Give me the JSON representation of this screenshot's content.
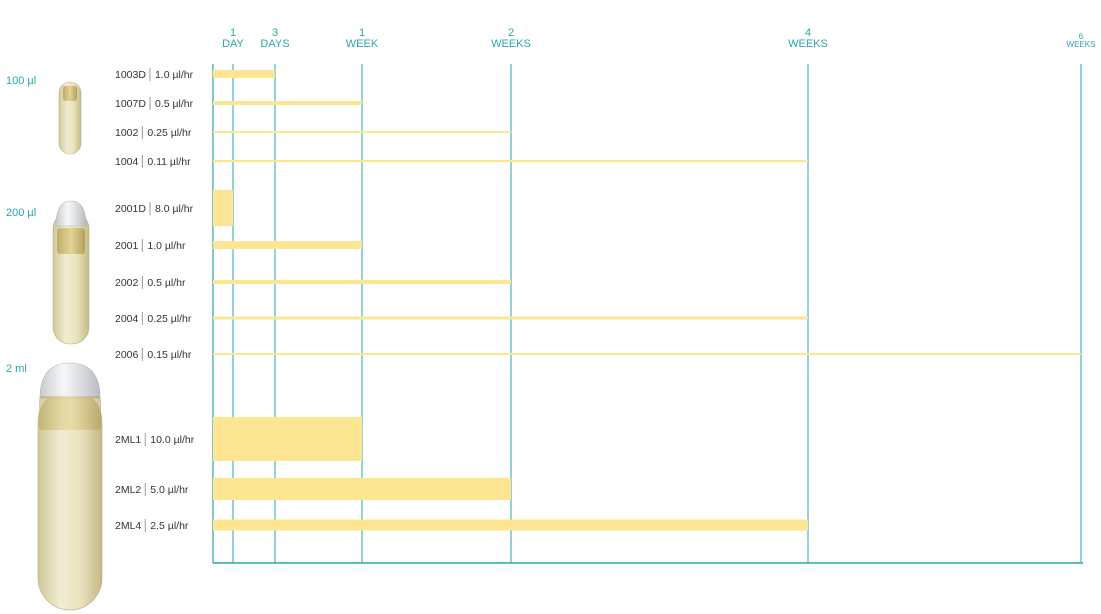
{
  "chart_data": {
    "type": "bar",
    "orientation": "horizontal",
    "x_unit": "days",
    "xlim": [
      0,
      42
    ],
    "ticks": [
      {
        "value": 1,
        "lines": [
          "1",
          "DAY"
        ]
      },
      {
        "value": 3,
        "lines": [
          "3",
          "DAYS"
        ]
      },
      {
        "value": 7,
        "lines": [
          "1",
          "WEEK"
        ]
      },
      {
        "value": 14,
        "lines": [
          "2",
          "WEEKS"
        ]
      },
      {
        "value": 28,
        "lines": [
          "4",
          "WEEKS"
        ]
      },
      {
        "value": 42,
        "lines": [
          "6",
          "WEEKS"
        ],
        "small": true
      }
    ],
    "groups": [
      {
        "size_label": "100 µl",
        "pump": "small",
        "items": [
          {
            "model": "1003D",
            "rate": "1.0 µl/hr",
            "duration_days": 3,
            "thickness": 8
          },
          {
            "model": "1007D",
            "rate": "0.5 µl/hr",
            "duration_days": 7,
            "thickness": 4
          },
          {
            "model": "1002",
            "rate": "0.25 µl/hr",
            "duration_days": 14,
            "thickness": 2
          },
          {
            "model": "1004",
            "rate": "0.11 µl/hr",
            "duration_days": 28,
            "thickness": 2
          }
        ]
      },
      {
        "size_label": "200 µl",
        "pump": "medium",
        "items": [
          {
            "model": "2001D",
            "rate": "8.0 µl/hr",
            "duration_days": 1,
            "thickness": 36
          },
          {
            "model": "2001",
            "rate": "1.0 µl/hr",
            "duration_days": 7,
            "thickness": 8
          },
          {
            "model": "2002",
            "rate": "0.5 µl/hr",
            "duration_days": 14,
            "thickness": 4
          },
          {
            "model": "2004",
            "rate": "0.25 µl/hr",
            "duration_days": 28,
            "thickness": 3
          },
          {
            "model": "2006",
            "rate": "0.15 µl/hr",
            "duration_days": 42,
            "thickness": 2
          }
        ]
      },
      {
        "size_label": "2 ml",
        "pump": "large",
        "items": [
          {
            "model": "2ML1",
            "rate": "10.0 µl/hr",
            "duration_days": 7,
            "thickness": 44
          },
          {
            "model": "2ML2",
            "rate": "5.0 µl/hr",
            "duration_days": 14,
            "thickness": 22
          },
          {
            "model": "2ML4",
            "rate": "2.5 µl/hr",
            "duration_days": 28,
            "thickness": 11
          }
        ]
      }
    ]
  },
  "colors": {
    "axis": "#2aa5ad",
    "bar": "#fce593",
    "label": "#333333",
    "separator": "#9a9a9a"
  }
}
